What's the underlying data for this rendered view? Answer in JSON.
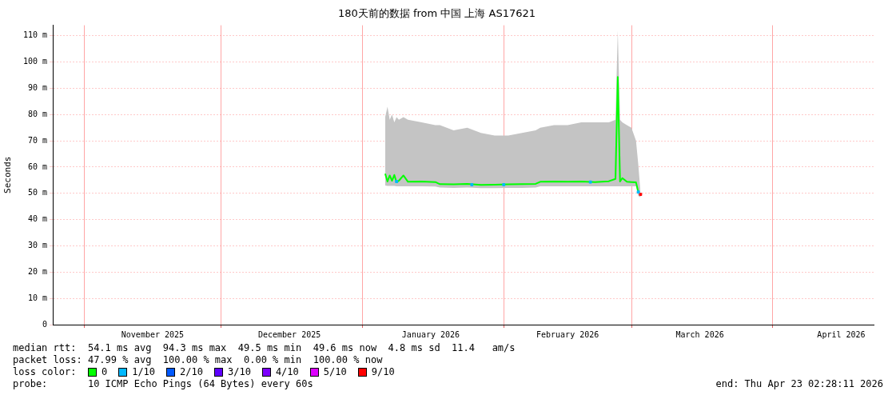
{
  "chart_data": {
    "type": "line",
    "title": "180天前的数据 from 中国 上海 AS17621",
    "ylabel": "Seconds",
    "xlim": [
      "2025-10-25T02:28",
      "2026-04-23T02:28"
    ],
    "xticks": [
      {
        "value": "2025-11-01",
        "label": null
      },
      {
        "value": "2025-11-16",
        "label": "November 2025"
      },
      {
        "value": "2025-12-01",
        "label": null
      },
      {
        "value": "2025-12-16",
        "label": "December 2025"
      },
      {
        "value": "2026-01-01",
        "label": null
      },
      {
        "value": "2026-01-16",
        "label": "January 2026"
      },
      {
        "value": "2026-02-01",
        "label": null
      },
      {
        "value": "2026-02-15",
        "label": "February 2026"
      },
      {
        "value": "2026-03-01",
        "label": null
      },
      {
        "value": "2026-03-16",
        "label": "March 2026"
      },
      {
        "value": "2026-04-01",
        "label": null
      },
      {
        "value": "2026-04-16",
        "label": "April 2026"
      }
    ],
    "ylim": [
      0,
      114
    ],
    "yticks": [
      0,
      {
        "value": 10,
        "label": "10 m"
      },
      {
        "value": 20,
        "label": "20 m"
      },
      {
        "value": 30,
        "label": "30 m"
      },
      {
        "value": 40,
        "label": "40 m"
      },
      {
        "value": 50,
        "label": "50 m"
      },
      {
        "value": 60,
        "label": "60 m"
      },
      {
        "value": 70,
        "label": "70 m"
      },
      {
        "value": 80,
        "label": "80 m"
      },
      {
        "value": 90,
        "label": "90 m"
      },
      {
        "value": 100,
        "label": "100 m"
      },
      {
        "value": 110,
        "label": "110 m"
      }
    ],
    "grid": true,
    "legend": "bottom left",
    "legend_title": "loss color:",
    "series": [
      {
        "name": "0",
        "color": "#00ff00",
        "x": [
          "2026-01-06T00:00",
          "2026-01-06T12:00",
          "2026-01-07T00:00",
          "2026-01-07T12:00",
          "2026-01-08T00:00",
          "2026-01-08T12:00",
          "2026-01-09",
          "2026-01-10",
          "2026-01-11",
          "2026-01-14",
          "2026-01-17",
          "2026-01-18",
          "2026-01-21",
          "2026-01-24",
          "2026-01-27",
          "2026-01-30",
          "2026-02-02",
          "2026-02-05",
          "2026-02-08",
          "2026-02-09",
          "2026-02-12",
          "2026-02-15",
          "2026-02-18",
          "2026-02-21",
          "2026-02-24",
          "2026-02-25T12:00",
          "2026-02-26T00:00",
          "2026-02-26T12:00",
          "2026-02-27",
          "2026-02-28",
          "2026-03-01",
          "2026-03-02T00:00",
          "2026-03-02T12:00",
          "2026-03-03T00:00"
        ],
        "values": [
          57.5,
          54.5,
          56.8,
          54.8,
          57,
          54.2,
          54.8,
          56.8,
          54.4,
          54.5,
          54.3,
          53.5,
          53.4,
          53.6,
          53.2,
          53.3,
          53.4,
          53.5,
          53.6,
          54.4,
          54.5,
          54.4,
          54.5,
          54.3,
          54.6,
          55.5,
          94.3,
          54.5,
          55.8,
          54.4,
          54.3,
          54.2,
          50.5,
          null
        ],
        "lower": [
          53,
          52.8,
          52.8,
          52.8,
          52.8,
          52.7,
          52.7,
          52.7,
          52.7,
          52.7,
          52.6,
          52.2,
          52.1,
          52.2,
          52,
          52,
          52.1,
          52.1,
          52.2,
          52.7,
          52.7,
          52.7,
          52.7,
          52.7,
          52.7,
          52.7,
          52.7,
          52.7,
          52.7,
          52.7,
          52.7,
          52.7,
          49,
          48.5
        ],
        "upper": [
          79,
          83,
          78,
          80,
          77,
          79,
          78,
          79,
          78,
          77,
          76,
          76,
          74,
          75,
          73,
          72,
          72,
          73,
          74,
          75,
          76,
          76,
          77,
          77,
          77,
          78,
          112,
          78,
          77,
          76,
          75,
          70,
          61,
          50
        ]
      },
      {
        "name": "1/10",
        "color": "#00b8ff",
        "type": "scatter",
        "x": [
          "2026-01-08T12:00",
          "2026-01-25",
          "2026-02-01",
          "2026-02-20",
          "2026-03-02T12:00"
        ],
        "values": [
          54.5,
          53.3,
          53.3,
          54.3,
          50.5
        ]
      },
      {
        "name": "2/10",
        "color": "#0059ff",
        "type": "scatter"
      },
      {
        "name": "3/10",
        "color": "#5e00ff",
        "type": "scatter"
      },
      {
        "name": "4/10",
        "color": "#7e00ff",
        "type": "scatter"
      },
      {
        "name": "5/10",
        "color": "#dd00ff",
        "type": "scatter"
      },
      {
        "name": "9/10",
        "color": "#ff0000",
        "type": "scatter",
        "x": [
          "2026-03-03T00:00"
        ],
        "values": [
          49.6
        ]
      }
    ],
    "annotations": [
      "median rtt:  54.1 ms avg  94.3 ms max  49.5 ms min  49.6 ms now  4.8 ms sd  11.4   am/s",
      "packet loss: 47.99 % avg  100.00 % max  0.00 % min  100.00 % now",
      "probe:       10 ICMP Echo Pings (64 Bytes) every 60s",
      "end: Thu Apr 23 02:28:11 2026"
    ]
  }
}
